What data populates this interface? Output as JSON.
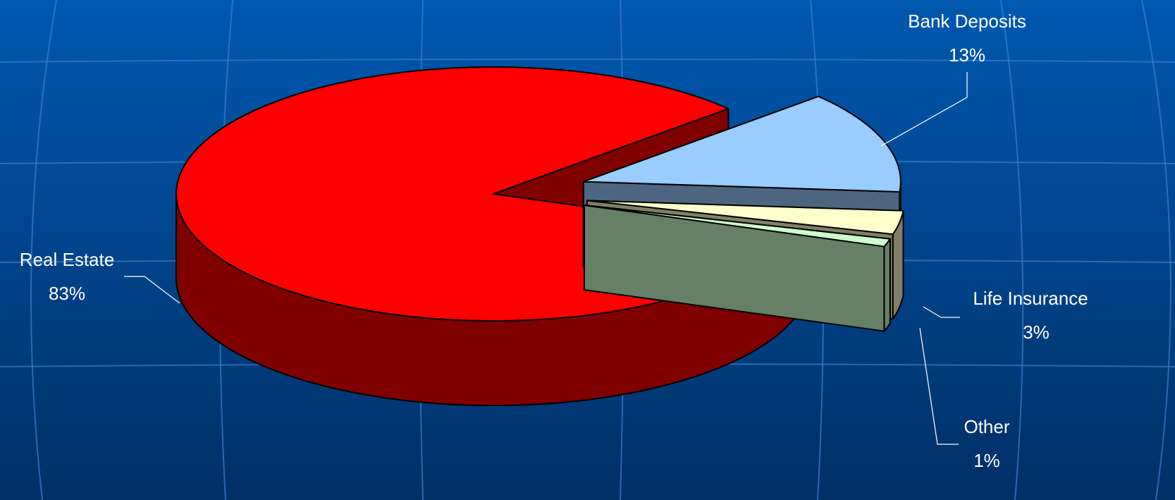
{
  "chart_data": {
    "type": "pie",
    "categories": [
      "Real Estate",
      "Bank Deposits",
      "Life Insurance",
      "Other"
    ],
    "values": [
      83,
      13,
      3,
      1
    ],
    "value_labels": [
      "83%",
      "13%",
      "3%",
      "1%"
    ],
    "colors": [
      "#ff0000",
      "#99ccff",
      "#ffffcc",
      "#ccffcc"
    ]
  }
}
